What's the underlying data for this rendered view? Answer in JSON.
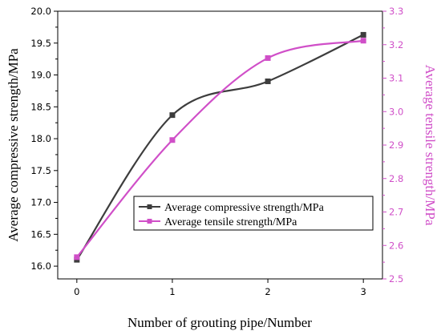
{
  "chart_data": {
    "type": "line",
    "x": [
      0,
      1,
      2,
      3
    ],
    "xticks": [
      "0",
      "1",
      "2",
      "3"
    ],
    "xlabel": "Number of grouting pipe/Number",
    "xlim": [
      -0.2,
      3.2
    ],
    "ylabel_left": "Average compressive strength/MPa",
    "ylabel_right": "Average tensile strength/MPa",
    "ylim_left": [
      15.8,
      20.0
    ],
    "ylim_right": [
      2.5,
      3.3
    ],
    "yticks_left": [
      "16.0",
      "16.5",
      "17.0",
      "17.5",
      "18.0",
      "18.5",
      "19.0",
      "19.5",
      "20.0"
    ],
    "yticks_right": [
      "2.5",
      "2.6",
      "2.7",
      "2.8",
      "2.9",
      "3.0",
      "3.1",
      "3.2",
      "3.3"
    ],
    "grid": false,
    "legend_position": "bottom-center",
    "series": [
      {
        "name": "Average compressive strength/MPa",
        "axis": "left",
        "color": "#3d3d3d",
        "marker": "square",
        "values": [
          16.1,
          18.37,
          18.9,
          19.63
        ]
      },
      {
        "name": "Average tensile strength/MPa",
        "axis": "right",
        "color": "#d04fc8",
        "marker": "square",
        "values": [
          2.565,
          2.915,
          3.16,
          3.212
        ]
      }
    ]
  }
}
